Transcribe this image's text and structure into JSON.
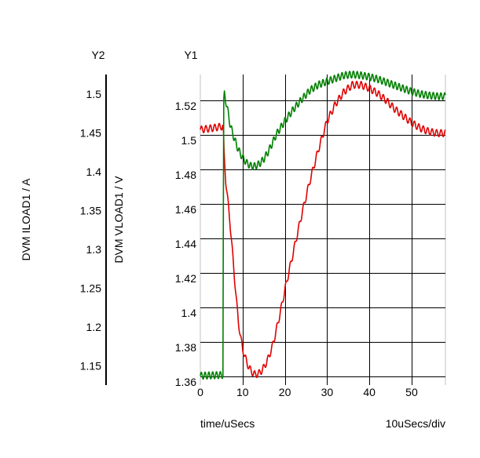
{
  "chart_data": {
    "type": "line",
    "axes": {
      "x": {
        "label": "time/uSecs",
        "scale_label": "10uSecs/div",
        "range": [
          0,
          58
        ],
        "ticks": [
          0,
          10,
          20,
          30,
          40,
          50
        ]
      },
      "y1": {
        "title": "Y1",
        "label": "DVM VLOAD1 / V",
        "range": [
          1.355,
          1.535
        ],
        "ticks": [
          1.36,
          1.38,
          1.4,
          1.42,
          1.44,
          1.46,
          1.48,
          1.5,
          1.52
        ]
      },
      "y2": {
        "title": "Y2",
        "label": "DVM ILOAD1 / A",
        "range": [
          1.125,
          1.525
        ],
        "ticks": [
          1.15,
          1.2,
          1.25,
          1.3,
          1.35,
          1.4,
          1.45,
          1.5
        ]
      }
    },
    "tick_labels": {
      "x": [
        "0",
        "10",
        "20",
        "30",
        "40",
        "50"
      ],
      "y1": [
        "1.36",
        "1.38",
        "1.4",
        "1.42",
        "1.44",
        "1.46",
        "1.48",
        "1.5",
        "1.52"
      ],
      "y2": [
        "1.15",
        "1.2",
        "1.25",
        "1.3",
        "1.35",
        "1.4",
        "1.45",
        "1.5"
      ]
    },
    "grid": true,
    "series": [
      {
        "axis": "y1",
        "color": "#e00000",
        "ripple_amplitude": 0.002,
        "ripple_period_us": 1.05,
        "points": [
          [
            0,
            1.503
          ],
          [
            3,
            1.504
          ],
          [
            5.3,
            1.505
          ],
          [
            5.5,
            1.499
          ],
          [
            5.6,
            1.49
          ],
          [
            6,
            1.474
          ],
          [
            6.5,
            1.462
          ],
          [
            7,
            1.45
          ],
          [
            7.5,
            1.435
          ],
          [
            8,
            1.42
          ],
          [
            8.5,
            1.405
          ],
          [
            9,
            1.392
          ],
          [
            9.5,
            1.383
          ],
          [
            10,
            1.376
          ],
          [
            11,
            1.368
          ],
          [
            12,
            1.363
          ],
          [
            13,
            1.361
          ],
          [
            14,
            1.362
          ],
          [
            15,
            1.365
          ],
          [
            16,
            1.37
          ],
          [
            17,
            1.377
          ],
          [
            18,
            1.387
          ],
          [
            19,
            1.398
          ],
          [
            20,
            1.41
          ],
          [
            22,
            1.432
          ],
          [
            24,
            1.454
          ],
          [
            26,
            1.474
          ],
          [
            28,
            1.492
          ],
          [
            30,
            1.508
          ],
          [
            32,
            1.518
          ],
          [
            34,
            1.525
          ],
          [
            36,
            1.529
          ],
          [
            38,
            1.529
          ],
          [
            40,
            1.527
          ],
          [
            42,
            1.524
          ],
          [
            44,
            1.52
          ],
          [
            46,
            1.515
          ],
          [
            48,
            1.511
          ],
          [
            50,
            1.507
          ],
          [
            52,
            1.504
          ],
          [
            54,
            1.502
          ],
          [
            56,
            1.501
          ],
          [
            58,
            1.501
          ]
        ]
      },
      {
        "axis": "y2",
        "color": "#008000",
        "ripple_amplitude": 0.002,
        "ripple_period_us": 0.9,
        "points": [
          [
            0,
            1.137
          ],
          [
            5.2,
            1.138
          ],
          [
            5.35,
            1.138
          ],
          [
            5.45,
            1.35
          ],
          [
            5.55,
            1.49
          ],
          [
            5.7,
            1.5
          ],
          [
            6,
            1.492
          ],
          [
            6.5,
            1.478
          ],
          [
            7,
            1.462
          ],
          [
            7.5,
            1.452
          ],
          [
            8,
            1.443
          ],
          [
            9,
            1.428
          ],
          [
            10,
            1.418
          ],
          [
            11,
            1.411
          ],
          [
            12,
            1.407
          ],
          [
            13,
            1.407
          ],
          [
            14,
            1.41
          ],
          [
            15,
            1.416
          ],
          [
            16,
            1.425
          ],
          [
            17,
            1.436
          ],
          [
            18,
            1.448
          ],
          [
            20,
            1.465
          ],
          [
            22,
            1.48
          ],
          [
            24,
            1.493
          ],
          [
            26,
            1.505
          ],
          [
            28,
            1.512
          ],
          [
            30,
            1.516
          ],
          [
            32,
            1.52
          ],
          [
            34,
            1.524
          ],
          [
            36,
            1.525
          ],
          [
            38,
            1.524
          ],
          [
            40,
            1.522
          ],
          [
            42,
            1.519
          ],
          [
            44,
            1.515
          ],
          [
            46,
            1.511
          ],
          [
            48,
            1.507
          ],
          [
            50,
            1.503
          ],
          [
            52,
            1.5
          ],
          [
            54,
            1.498
          ],
          [
            56,
            1.497
          ],
          [
            58,
            1.497
          ]
        ]
      }
    ]
  }
}
